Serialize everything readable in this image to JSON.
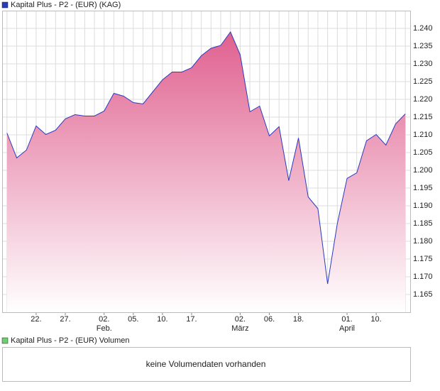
{
  "chart_data": {
    "type": "area",
    "legend": "Kapital Plus - P2 - (EUR) (KAG)",
    "x": [
      0,
      1,
      2,
      3,
      4,
      5,
      6,
      7,
      8,
      9,
      10,
      11,
      12,
      13,
      14,
      15,
      16,
      17,
      18,
      19,
      20,
      21,
      22,
      23,
      24,
      25,
      26,
      27,
      28,
      29,
      30,
      31,
      32,
      33,
      34,
      35,
      36,
      37,
      38,
      39,
      40,
      41
    ],
    "series": [
      {
        "name": "Kapital Plus - P2 - (EUR) (KAG)",
        "color": "#2b3bbf",
        "values": [
          1.2105,
          1.2035,
          1.2057,
          1.2125,
          1.2101,
          1.2113,
          1.2145,
          1.2157,
          1.2153,
          1.2153,
          1.2167,
          1.2217,
          1.2209,
          1.2191,
          1.2187,
          1.2221,
          1.2255,
          1.2277,
          1.2277,
          1.2289,
          1.2323,
          1.2344,
          1.2352,
          1.239,
          1.2326,
          1.2165,
          1.2181,
          1.2097,
          1.2123,
          1.1971,
          1.2091,
          1.1925,
          1.1892,
          1.168,
          1.185,
          1.1977,
          1.1993,
          1.2083,
          1.2101,
          1.2071,
          1.2131,
          1.2159
        ]
      }
    ],
    "fill_color": "#e0608f",
    "xlim": [
      -0.5,
      41.5
    ],
    "xticks": [
      {
        "value": 3,
        "label": "22."
      },
      {
        "value": 6,
        "label": "27."
      },
      {
        "value": 10,
        "label": "02."
      },
      {
        "value": 13,
        "label": "05."
      },
      {
        "value": 16,
        "label": "10."
      },
      {
        "value": 19,
        "label": "17."
      },
      {
        "value": 24,
        "label": "02."
      },
      {
        "value": 27,
        "label": "06."
      },
      {
        "value": 30,
        "label": "18."
      },
      {
        "value": 35,
        "label": "01."
      },
      {
        "value": 38,
        "label": "10."
      }
    ],
    "xmonths": [
      {
        "value": 10,
        "label": "Feb."
      },
      {
        "value": 24,
        "label": "März"
      },
      {
        "value": 35,
        "label": "April"
      }
    ],
    "ylim": [
      1.16,
      1.245
    ],
    "yticks": [
      {
        "value": 1.165,
        "label": "1.165"
      },
      {
        "value": 1.17,
        "label": "1.170"
      },
      {
        "value": 1.175,
        "label": "1.175"
      },
      {
        "value": 1.18,
        "label": "1.180"
      },
      {
        "value": 1.185,
        "label": "1.185"
      },
      {
        "value": 1.19,
        "label": "1.190"
      },
      {
        "value": 1.195,
        "label": "1.195"
      },
      {
        "value": 1.2,
        "label": "1.200"
      },
      {
        "value": 1.205,
        "label": "1.205"
      },
      {
        "value": 1.21,
        "label": "1.210"
      },
      {
        "value": 1.215,
        "label": "1.215"
      },
      {
        "value": 1.22,
        "label": "1.220"
      },
      {
        "value": 1.225,
        "label": "1.225"
      },
      {
        "value": 1.23,
        "label": "1.230"
      },
      {
        "value": 1.235,
        "label": "1.235"
      },
      {
        "value": 1.24,
        "label": "1.240"
      }
    ],
    "grid": true
  },
  "volume_panel": {
    "legend": "Kapital Plus - P2 - (EUR) Volumen",
    "message": "keine Volumendaten vorhanden"
  }
}
